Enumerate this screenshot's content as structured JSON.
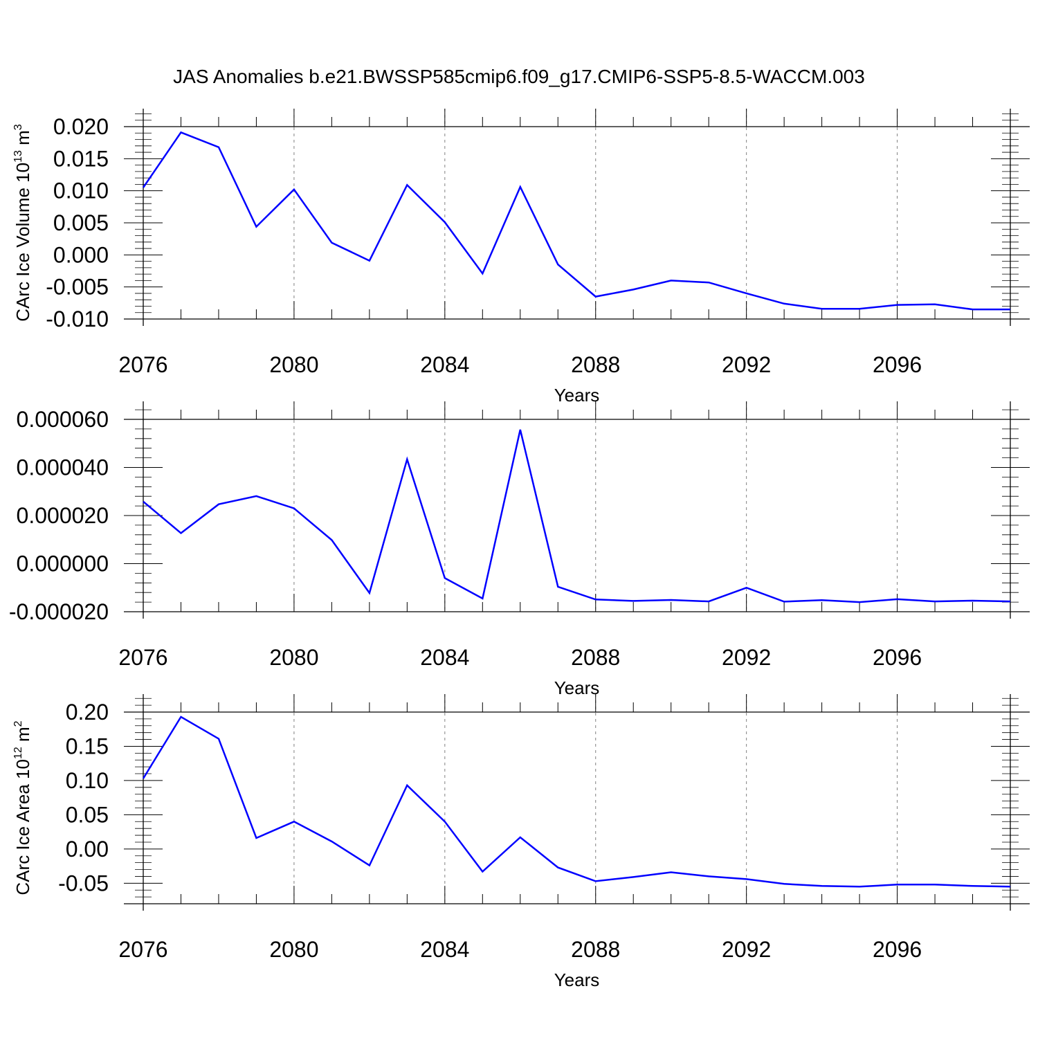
{
  "title": "JAS Anomalies b.e21.BWSSP585cmip6.f09_g17.CMIP6-SSP5-8.5-WACCM.003",
  "line_color": "#0000ff",
  "grid_color": "#808080",
  "chart_data": [
    {
      "type": "line",
      "xlabel": "Years",
      "ylabel": {
        "main": "CArc Ice Volume 10",
        "sup": "13",
        "unit": " m",
        "unit_sup": "3"
      },
      "xlim": [
        2076,
        2099
      ],
      "ylim": [
        -0.01,
        0.022
      ],
      "x_ticks": [
        2076,
        2080,
        2084,
        2088,
        2092,
        2096
      ],
      "x_tick_labels": [
        "2076",
        "2080",
        "2084",
        "2088",
        "2092",
        "2096"
      ],
      "y_ticks": [
        -0.01,
        -0.005,
        0.0,
        0.005,
        0.01,
        0.015,
        0.02
      ],
      "y_tick_labels": [
        "-0.010",
        "-0.005",
        "0.000",
        "0.005",
        "0.010",
        "0.015",
        "0.020"
      ],
      "grid": "x-major-dashed",
      "x": [
        2076,
        2077,
        2078,
        2079,
        2080,
        2081,
        2082,
        2083,
        2084,
        2085,
        2086,
        2087,
        2088,
        2089,
        2090,
        2091,
        2092,
        2093,
        2094,
        2095,
        2096,
        2097,
        2098,
        2099
      ],
      "series": [
        {
          "values": [
            0.0105,
            0.0191,
            0.0168,
            0.0044,
            0.0102,
            0.0019,
            -0.0009,
            0.0109,
            0.0051,
            -0.0029,
            0.0106,
            -0.0015,
            -0.0065,
            -0.0054,
            -0.004,
            -0.0043,
            -0.006,
            -0.0076,
            -0.0084,
            -0.0084,
            -0.0078,
            -0.0077,
            -0.0085,
            -0.0085
          ]
        }
      ]
    },
    {
      "type": "line",
      "xlabel": "Years",
      "ylabel": {
        "main": "",
        "sup": "",
        "unit": "",
        "unit_sup": ""
      },
      "xlim": [
        2076,
        2099
      ],
      "ylim": [
        -2e-05,
        6e-05
      ],
      "x_ticks": [
        2076,
        2080,
        2084,
        2088,
        2092,
        2096
      ],
      "x_tick_labels": [
        "2076",
        "2080",
        "2084",
        "2088",
        "2092",
        "2096"
      ],
      "y_ticks": [
        -2e-05,
        0.0,
        2e-05,
        4e-05,
        6e-05
      ],
      "y_tick_labels": [
        "-0.000020",
        "0.000000",
        "0.000020",
        "0.000040",
        "0.000060"
      ],
      "grid": "x-major-dashed",
      "x": [
        2076,
        2077,
        2078,
        2079,
        2080,
        2081,
        2082,
        2083,
        2084,
        2085,
        2086,
        2087,
        2088,
        2089,
        2090,
        2091,
        2092,
        2093,
        2094,
        2095,
        2096,
        2097,
        2098,
        2099
      ],
      "series": [
        {
          "values": [
            2.58e-05,
            1.27e-05,
            2.47e-05,
            2.81e-05,
            2.3e-05,
            9.8e-06,
            -1.22e-05,
            4.34e-05,
            -6e-06,
            -1.45e-05,
            5.57e-05,
            -9.6e-06,
            -1.49e-05,
            -1.55e-05,
            -1.51e-05,
            -1.57e-05,
            -1e-05,
            -1.58e-05,
            -1.52e-05,
            -1.6e-05,
            -1.48e-05,
            -1.57e-05,
            -1.54e-05,
            -1.57e-05
          ]
        }
      ]
    },
    {
      "type": "line",
      "xlabel": "Years",
      "ylabel": {
        "main": "CArc Ice Area 10",
        "sup": "12",
        "unit": " m",
        "unit_sup": "2"
      },
      "xlim": [
        2076,
        2099
      ],
      "ylim": [
        -0.08,
        0.22
      ],
      "x_ticks": [
        2076,
        2080,
        2084,
        2088,
        2092,
        2096
      ],
      "x_tick_labels": [
        "2076",
        "2080",
        "2084",
        "2088",
        "2092",
        "2096"
      ],
      "y_ticks": [
        -0.05,
        0.0,
        0.05,
        0.1,
        0.15,
        0.2
      ],
      "y_tick_labels": [
        "-0.05",
        "0.00",
        "0.05",
        "0.10",
        "0.15",
        "0.20"
      ],
      "grid": "x-major-dashed",
      "x": [
        2076,
        2077,
        2078,
        2079,
        2080,
        2081,
        2082,
        2083,
        2084,
        2085,
        2086,
        2087,
        2088,
        2089,
        2090,
        2091,
        2092,
        2093,
        2094,
        2095,
        2096,
        2097,
        2098,
        2099
      ],
      "series": [
        {
          "values": [
            0.103,
            0.193,
            0.161,
            0.016,
            0.04,
            0.011,
            -0.024,
            0.093,
            0.04,
            -0.033,
            0.017,
            -0.027,
            -0.047,
            -0.041,
            -0.034,
            -0.04,
            -0.044,
            -0.051,
            -0.054,
            -0.055,
            -0.052,
            -0.052,
            -0.054,
            -0.055
          ]
        }
      ]
    }
  ]
}
